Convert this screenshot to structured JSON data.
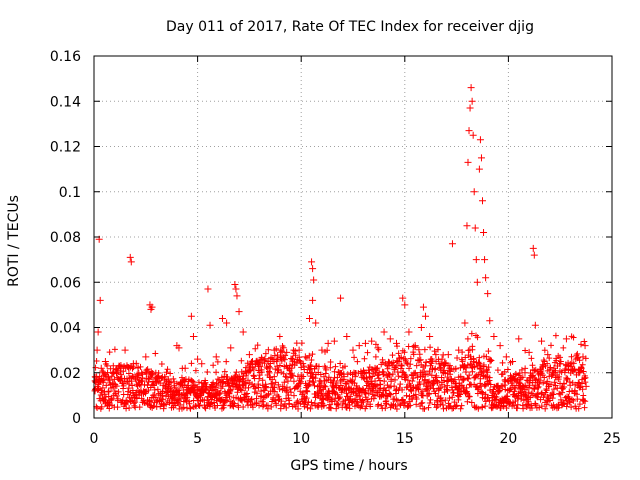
{
  "chart_data": {
    "type": "scatter",
    "title": "Day 011 of 2017, Rate Of TEC Index for receiver djig",
    "xlabel": "GPS time / hours",
    "ylabel": "ROTI / TECUs",
    "xlim": [
      0,
      25
    ],
    "ylim": [
      0,
      0.16
    ],
    "xticks": [
      0,
      5,
      10,
      15,
      20,
      25
    ],
    "xtick_labels": [
      "0",
      "5",
      "10",
      "15",
      "20",
      "25"
    ],
    "yticks": [
      0,
      0.02,
      0.04,
      0.06,
      0.08,
      0.1,
      0.12,
      0.14,
      0.16
    ],
    "ytick_labels": [
      "0",
      "0.02",
      "0.04",
      "0.06",
      "0.08",
      "0.1",
      "0.12",
      "0.14",
      "0.16"
    ],
    "grid": true,
    "marker": "+",
    "color": "#ff0000",
    "series": [
      {
        "name": "ROTI",
        "points": [
          [
            0.05,
            0.012
          ],
          [
            0.1,
            0.016
          ],
          [
            0.15,
            0.03
          ],
          [
            0.2,
            0.038
          ],
          [
            0.25,
            0.079
          ],
          [
            0.3,
            0.052
          ],
          [
            0.35,
            0.022
          ],
          [
            0.45,
            0.02
          ],
          [
            0.55,
            0.025
          ],
          [
            0.7,
            0.018
          ],
          [
            0.9,
            0.015
          ],
          [
            1.1,
            0.02
          ],
          [
            1.3,
            0.022
          ],
          [
            1.5,
            0.03
          ],
          [
            1.75,
            0.071
          ],
          [
            1.8,
            0.069
          ],
          [
            1.9,
            0.024
          ],
          [
            2.1,
            0.018
          ],
          [
            2.3,
            0.02
          ],
          [
            2.5,
            0.027
          ],
          [
            2.7,
            0.05
          ],
          [
            2.75,
            0.048
          ],
          [
            2.8,
            0.049
          ],
          [
            3.0,
            0.016
          ],
          [
            3.3,
            0.018
          ],
          [
            3.6,
            0.014
          ],
          [
            4.0,
            0.032
          ],
          [
            4.1,
            0.031
          ],
          [
            4.4,
            0.022
          ],
          [
            4.7,
            0.045
          ],
          [
            4.8,
            0.036
          ],
          [
            5.0,
            0.026
          ],
          [
            5.2,
            0.024
          ],
          [
            5.5,
            0.057
          ],
          [
            5.6,
            0.041
          ],
          [
            5.9,
            0.027
          ],
          [
            6.2,
            0.044
          ],
          [
            6.4,
            0.042
          ],
          [
            6.6,
            0.031
          ],
          [
            6.8,
            0.059
          ],
          [
            6.85,
            0.057
          ],
          [
            6.9,
            0.054
          ],
          [
            7.0,
            0.047
          ],
          [
            7.2,
            0.038
          ],
          [
            7.5,
            0.028
          ],
          [
            7.8,
            0.024
          ],
          [
            8.1,
            0.026
          ],
          [
            8.4,
            0.025
          ],
          [
            8.7,
            0.03
          ],
          [
            9.0,
            0.027
          ],
          [
            9.3,
            0.029
          ],
          [
            9.6,
            0.026
          ],
          [
            9.9,
            0.03
          ],
          [
            10.2,
            0.027
          ],
          [
            10.4,
            0.044
          ],
          [
            10.5,
            0.069
          ],
          [
            10.55,
            0.066
          ],
          [
            10.6,
            0.061
          ],
          [
            10.55,
            0.052
          ],
          [
            10.7,
            0.042
          ],
          [
            11.0,
            0.03
          ],
          [
            11.3,
            0.033
          ],
          [
            11.6,
            0.034
          ],
          [
            11.9,
            0.053
          ],
          [
            12.2,
            0.036
          ],
          [
            12.5,
            0.03
          ],
          [
            12.8,
            0.032
          ],
          [
            13.1,
            0.033
          ],
          [
            13.4,
            0.034
          ],
          [
            13.7,
            0.031
          ],
          [
            14.0,
            0.038
          ],
          [
            14.3,
            0.035
          ],
          [
            14.6,
            0.033
          ],
          [
            14.9,
            0.053
          ],
          [
            15.0,
            0.05
          ],
          [
            15.2,
            0.038
          ],
          [
            15.5,
            0.032
          ],
          [
            15.8,
            0.04
          ],
          [
            15.9,
            0.049
          ],
          [
            16.0,
            0.045
          ],
          [
            16.2,
            0.036
          ],
          [
            16.5,
            0.028
          ],
          [
            16.8,
            0.026
          ],
          [
            17.1,
            0.028
          ],
          [
            17.3,
            0.077
          ],
          [
            17.6,
            0.03
          ],
          [
            17.9,
            0.042
          ],
          [
            18.0,
            0.085
          ],
          [
            18.05,
            0.113
          ],
          [
            18.1,
            0.127
          ],
          [
            18.15,
            0.137
          ],
          [
            18.2,
            0.146
          ],
          [
            18.25,
            0.14
          ],
          [
            18.3,
            0.125
          ],
          [
            18.35,
            0.1
          ],
          [
            18.4,
            0.084
          ],
          [
            18.45,
            0.07
          ],
          [
            18.5,
            0.06
          ],
          [
            18.6,
            0.11
          ],
          [
            18.65,
            0.123
          ],
          [
            18.7,
            0.115
          ],
          [
            18.75,
            0.096
          ],
          [
            18.8,
            0.082
          ],
          [
            18.85,
            0.07
          ],
          [
            18.9,
            0.062
          ],
          [
            19.0,
            0.055
          ],
          [
            19.1,
            0.043
          ],
          [
            19.3,
            0.036
          ],
          [
            19.6,
            0.032
          ],
          [
            19.9,
            0.027
          ],
          [
            20.2,
            0.025
          ],
          [
            20.5,
            0.035
          ],
          [
            20.8,
            0.02
          ],
          [
            21.0,
            0.029
          ],
          [
            21.2,
            0.075
          ],
          [
            21.25,
            0.072
          ],
          [
            21.3,
            0.041
          ],
          [
            21.6,
            0.034
          ],
          [
            21.9,
            0.028
          ],
          [
            22.2,
            0.022
          ],
          [
            22.5,
            0.024
          ],
          [
            22.8,
            0.035
          ],
          [
            23.1,
            0.021
          ],
          [
            23.4,
            0.02
          ],
          [
            23.6,
            0.027
          ],
          [
            23.7,
            0.032
          ],
          [
            23.75,
            0.014
          ]
        ]
      }
    ]
  }
}
